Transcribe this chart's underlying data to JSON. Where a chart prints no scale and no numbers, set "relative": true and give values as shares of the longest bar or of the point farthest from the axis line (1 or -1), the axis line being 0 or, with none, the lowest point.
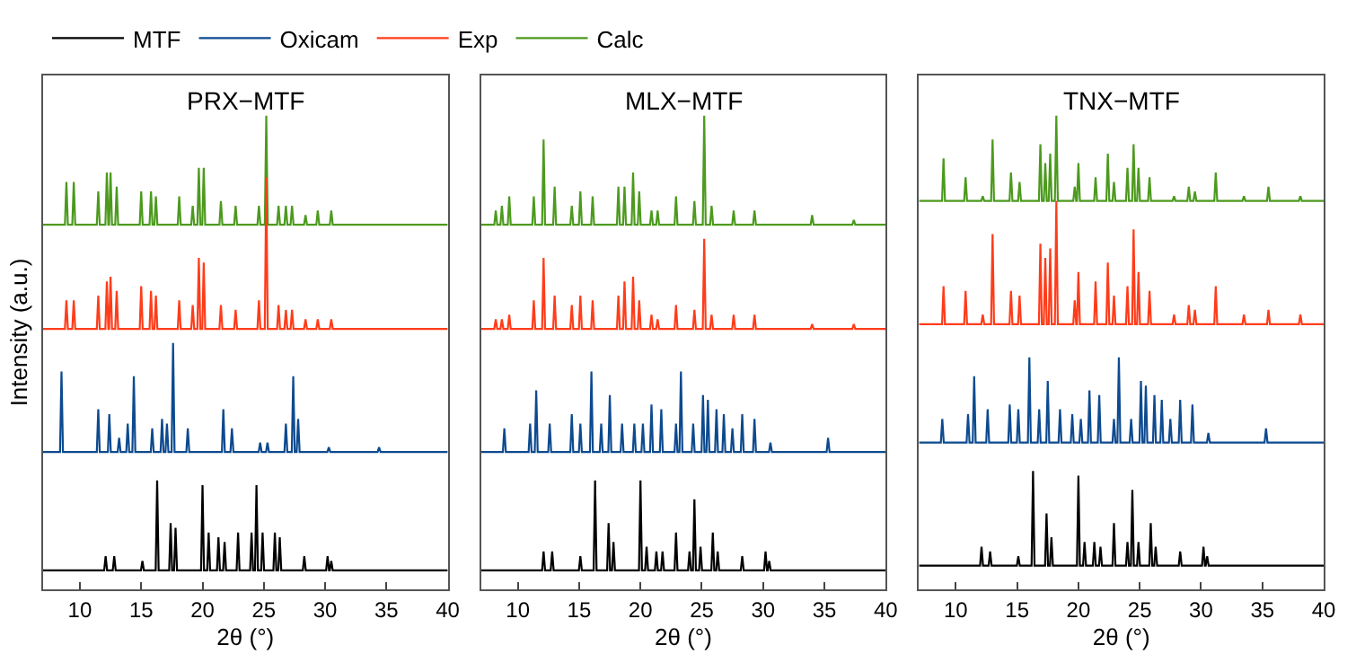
{
  "chart_data": [
    {
      "type": "line",
      "title": "PRX−MTF",
      "xlabel": "2θ (°)",
      "ylabel": "Intensity (a.u.)",
      "xlim": [
        7,
        40
      ],
      "xticks": [
        10,
        15,
        20,
        25,
        30,
        35,
        40
      ],
      "relative": true,
      "tick_labels": "x",
      "legend": "top",
      "series": [
        {
          "name": "MTF",
          "color": "#000000",
          "x": [
            7,
            11.98,
            12.1,
            12.22,
            12.68,
            12.8,
            12.92,
            14.98,
            15.1,
            15.22,
            16.18,
            16.3,
            16.42,
            17.28,
            17.4,
            17.52,
            17.68,
            17.8,
            17.92,
            19.88,
            20,
            20.12,
            20.38,
            20.5,
            20.62,
            21.18,
            21.3,
            21.42,
            21.68,
            21.8,
            21.92,
            22.78,
            22.9,
            23.02,
            23.88,
            24,
            24.12,
            24.28,
            24.4,
            24.52,
            24.78,
            24.9,
            25.02,
            25.78,
            25.9,
            26.02,
            26.18,
            26.3,
            26.42,
            28.18,
            28.3,
            28.42,
            30.08,
            30.2,
            30.32,
            30.38,
            30.5,
            30.62,
            40
          ],
          "values": [
            0.04,
            0.04,
            0.07,
            0.04,
            0.04,
            0.07,
            0.04,
            0.04,
            0.06,
            0.04,
            0.04,
            0.23,
            0.04,
            0.04,
            0.14,
            0.04,
            0.04,
            0.13,
            0.04,
            0.04,
            0.22,
            0.04,
            0.04,
            0.12,
            0.04,
            0.04,
            0.11,
            0.04,
            0.04,
            0.1,
            0.04,
            0.04,
            0.12,
            0.04,
            0.04,
            0.12,
            0.04,
            0.04,
            0.22,
            0.04,
            0.04,
            0.12,
            0.04,
            0.04,
            0.12,
            0.04,
            0.04,
            0.11,
            0.04,
            0.04,
            0.07,
            0.04,
            0.04,
            0.07,
            0.04,
            0.04,
            0.06,
            0.04,
            0.04
          ]
        },
        {
          "name": "Oxicam",
          "color": "#0d4a8f",
          "x": [
            7,
            8.38,
            8.5,
            8.62,
            11.38,
            11.5,
            11.62,
            12.28,
            12.4,
            12.52,
            13.08,
            13.2,
            13.32,
            13.78,
            13.9,
            14.02,
            14.28,
            14.4,
            14.52,
            15.78,
            15.9,
            16.02,
            16.58,
            16.7,
            16.82,
            16.98,
            17.1,
            17.22,
            17.48,
            17.6,
            17.72,
            18.68,
            18.8,
            18.92,
            21.58,
            21.7,
            21.82,
            22.28,
            22.4,
            22.52,
            24.58,
            24.7,
            24.82,
            25.18,
            25.3,
            25.42,
            26.68,
            26.8,
            26.92,
            27.28,
            27.4,
            27.52,
            27.68,
            27.8,
            27.92,
            30.18,
            30.3,
            30.42,
            34.28,
            34.4,
            34.52,
            40
          ],
          "values": [
            0.29,
            0.29,
            0.46,
            0.29,
            0.29,
            0.38,
            0.29,
            0.29,
            0.37,
            0.29,
            0.29,
            0.32,
            0.29,
            0.29,
            0.35,
            0.29,
            0.29,
            0.45,
            0.29,
            0.29,
            0.34,
            0.29,
            0.29,
            0.36,
            0.29,
            0.29,
            0.35,
            0.29,
            0.29,
            0.52,
            0.29,
            0.29,
            0.34,
            0.29,
            0.29,
            0.38,
            0.29,
            0.29,
            0.34,
            0.29,
            0.29,
            0.31,
            0.29,
            0.29,
            0.31,
            0.29,
            0.29,
            0.35,
            0.29,
            0.29,
            0.45,
            0.29,
            0.29,
            0.36,
            0.29,
            0.29,
            0.3,
            0.29,
            0.29,
            0.3,
            0.29,
            0.29
          ]
        },
        {
          "name": "Exp",
          "color": "#ff3c1a",
          "x": [
            7,
            8.78,
            8.9,
            9.02,
            9.38,
            9.5,
            9.62,
            11.38,
            11.5,
            11.62,
            12.08,
            12.2,
            12.32,
            12.38,
            12.5,
            12.62,
            12.88,
            13,
            13.12,
            14.88,
            15,
            15.12,
            15.68,
            15.8,
            15.92,
            16.08,
            16.2,
            16.32,
            17.98,
            18.1,
            18.22,
            19.08,
            19.2,
            19.32,
            19.58,
            19.7,
            19.82,
            19.98,
            20.1,
            20.22,
            21.38,
            21.5,
            21.62,
            22.58,
            22.7,
            22.82,
            24.48,
            24.6,
            24.72,
            25.08,
            25.2,
            25.32,
            26.08,
            26.2,
            26.32,
            26.68,
            26.8,
            26.92,
            27.18,
            27.3,
            27.42,
            28.28,
            28.4,
            28.52,
            29.28,
            29.4,
            29.52,
            30.38,
            30.5,
            30.62,
            40
          ],
          "values": [
            0.55,
            0.55,
            0.61,
            0.55,
            0.55,
            0.61,
            0.55,
            0.55,
            0.62,
            0.55,
            0.55,
            0.65,
            0.55,
            0.55,
            0.66,
            0.55,
            0.55,
            0.63,
            0.55,
            0.55,
            0.64,
            0.55,
            0.55,
            0.63,
            0.55,
            0.55,
            0.62,
            0.55,
            0.55,
            0.61,
            0.55,
            0.55,
            0.6,
            0.55,
            0.55,
            0.7,
            0.55,
            0.55,
            0.69,
            0.55,
            0.55,
            0.6,
            0.55,
            0.55,
            0.59,
            0.55,
            0.55,
            0.61,
            0.55,
            0.55,
            0.87,
            0.55,
            0.55,
            0.6,
            0.55,
            0.55,
            0.59,
            0.55,
            0.55,
            0.59,
            0.55,
            0.55,
            0.57,
            0.55,
            0.55,
            0.57,
            0.55,
            0.55,
            0.57,
            0.55,
            0.55
          ]
        },
        {
          "name": "Calc",
          "color": "#4c9a1e",
          "x": [
            7,
            8.78,
            8.9,
            9.02,
            9.38,
            9.5,
            9.62,
            11.38,
            11.5,
            11.62,
            12.08,
            12.2,
            12.32,
            12.38,
            12.5,
            12.62,
            12.88,
            13,
            13.12,
            14.88,
            15,
            15.12,
            15.68,
            15.8,
            15.92,
            16.08,
            16.2,
            16.32,
            17.98,
            18.1,
            18.22,
            19.08,
            19.2,
            19.32,
            19.58,
            19.7,
            19.82,
            19.98,
            20.1,
            20.22,
            21.38,
            21.5,
            21.62,
            22.58,
            22.7,
            22.82,
            24.48,
            24.6,
            24.72,
            25.08,
            25.2,
            25.32,
            26.08,
            26.2,
            26.32,
            26.68,
            26.8,
            26.92,
            27.18,
            27.3,
            27.42,
            28.28,
            28.4,
            28.52,
            29.28,
            29.4,
            29.52,
            30.38,
            30.5,
            30.62,
            40
          ],
          "values": [
            0.77,
            0.77,
            0.86,
            0.77,
            0.77,
            0.86,
            0.77,
            0.77,
            0.84,
            0.77,
            0.77,
            0.88,
            0.77,
            0.77,
            0.88,
            0.77,
            0.77,
            0.85,
            0.77,
            0.77,
            0.84,
            0.77,
            0.77,
            0.84,
            0.77,
            0.77,
            0.83,
            0.77,
            0.77,
            0.83,
            0.77,
            0.77,
            0.81,
            0.77,
            0.77,
            0.89,
            0.77,
            0.77,
            0.89,
            0.77,
            0.77,
            0.82,
            0.77,
            0.77,
            0.81,
            0.77,
            0.77,
            0.81,
            0.77,
            0.77,
            1,
            0.77,
            0.77,
            0.81,
            0.77,
            0.77,
            0.81,
            0.77,
            0.77,
            0.81,
            0.77,
            0.77,
            0.79,
            0.77,
            0.77,
            0.8,
            0.77,
            0.77,
            0.8,
            0.77,
            0.77
          ]
        }
      ]
    },
    {
      "type": "line",
      "title": "MLX−MTF",
      "xlabel": "2θ (°)",
      "xlim": [
        7,
        40
      ],
      "xticks": [
        10,
        15,
        20,
        25,
        30,
        35,
        40
      ],
      "relative": true,
      "tick_labels": "x",
      "series": [
        {
          "color": "#000000",
          "x": [
            7,
            11.98,
            12.1,
            12.22,
            12.68,
            12.8,
            12.92,
            14.98,
            15.1,
            15.22,
            16.18,
            16.3,
            16.42,
            17.28,
            17.4,
            17.52,
            17.68,
            17.8,
            17.92,
            19.88,
            20,
            20.12,
            20.38,
            20.5,
            20.62,
            21.18,
            21.3,
            21.42,
            21.68,
            21.8,
            21.92,
            22.78,
            22.9,
            23.02,
            23.88,
            24,
            24.12,
            24.28,
            24.4,
            24.52,
            24.78,
            24.9,
            25.02,
            25.78,
            25.9,
            26.02,
            26.18,
            26.3,
            26.42,
            28.18,
            28.3,
            28.42,
            30.08,
            30.2,
            30.32,
            30.38,
            30.5,
            30.62,
            40
          ],
          "values": [
            0.04,
            0.04,
            0.08,
            0.04,
            0.04,
            0.08,
            0.04,
            0.04,
            0.07,
            0.04,
            0.04,
            0.23,
            0.04,
            0.04,
            0.14,
            0.04,
            0.04,
            0.1,
            0.04,
            0.04,
            0.23,
            0.04,
            0.04,
            0.09,
            0.04,
            0.04,
            0.08,
            0.04,
            0.04,
            0.08,
            0.04,
            0.04,
            0.12,
            0.04,
            0.04,
            0.08,
            0.04,
            0.04,
            0.19,
            0.04,
            0.04,
            0.09,
            0.04,
            0.04,
            0.12,
            0.04,
            0.04,
            0.08,
            0.04,
            0.04,
            0.07,
            0.04,
            0.04,
            0.08,
            0.04,
            0.04,
            0.06,
            0.04,
            0.04
          ]
        },
        {
          "color": "#0d4a8f",
          "x": [
            7,
            8.78,
            8.9,
            9.02,
            10.88,
            11,
            11.12,
            11.38,
            11.5,
            11.62,
            12.48,
            12.6,
            12.72,
            14.28,
            14.4,
            14.52,
            14.98,
            15.1,
            15.22,
            15.88,
            16,
            16.12,
            16.68,
            16.8,
            16.92,
            17.38,
            17.5,
            17.62,
            18.38,
            18.5,
            18.62,
            19.38,
            19.5,
            19.62,
            20.08,
            20.2,
            20.32,
            20.78,
            20.9,
            21.02,
            21.58,
            21.7,
            21.82,
            22.78,
            22.9,
            23.02,
            23.18,
            23.3,
            23.42,
            24.18,
            24.3,
            24.42,
            24.98,
            25.1,
            25.22,
            25.38,
            25.5,
            25.62,
            26.08,
            26.2,
            26.32,
            26.68,
            26.8,
            26.92,
            27.38,
            27.5,
            27.62,
            28.18,
            28.3,
            28.42,
            29.18,
            29.3,
            29.42,
            30.48,
            30.6,
            30.72,
            35.18,
            35.3,
            35.42,
            40
          ],
          "values": [
            0.29,
            0.29,
            0.34,
            0.29,
            0.29,
            0.35,
            0.29,
            0.29,
            0.42,
            0.29,
            0.29,
            0.35,
            0.29,
            0.29,
            0.37,
            0.29,
            0.29,
            0.35,
            0.29,
            0.29,
            0.46,
            0.29,
            0.29,
            0.35,
            0.29,
            0.29,
            0.41,
            0.29,
            0.29,
            0.35,
            0.29,
            0.29,
            0.35,
            0.29,
            0.29,
            0.35,
            0.29,
            0.29,
            0.39,
            0.29,
            0.29,
            0.38,
            0.29,
            0.29,
            0.35,
            0.29,
            0.29,
            0.46,
            0.29,
            0.29,
            0.35,
            0.29,
            0.29,
            0.41,
            0.29,
            0.29,
            0.4,
            0.29,
            0.29,
            0.38,
            0.29,
            0.29,
            0.37,
            0.29,
            0.29,
            0.34,
            0.29,
            0.29,
            0.37,
            0.29,
            0.29,
            0.36,
            0.29,
            0.29,
            0.31,
            0.29,
            0.29,
            0.32,
            0.29,
            0.29
          ]
        },
        {
          "color": "#ff3c1a",
          "x": [
            7,
            8.08,
            8.2,
            8.32,
            8.58,
            8.7,
            8.82,
            9.18,
            9.3,
            9.42,
            11.18,
            11.3,
            11.42,
            11.98,
            12.1,
            12.22,
            12.88,
            13,
            13.12,
            14.28,
            14.4,
            14.52,
            14.98,
            15.1,
            15.22,
            15.98,
            16.1,
            16.22,
            18.08,
            18.2,
            18.32,
            18.58,
            18.7,
            18.82,
            19.28,
            19.4,
            19.52,
            19.78,
            19.9,
            20.02,
            20.78,
            20.9,
            21.02,
            21.28,
            21.4,
            21.52,
            22.78,
            22.9,
            23.02,
            24.28,
            24.4,
            24.52,
            25.08,
            25.2,
            25.32,
            25.68,
            25.8,
            25.92,
            27.48,
            27.6,
            27.72,
            29.18,
            29.3,
            29.42,
            33.88,
            34,
            34.12,
            37.28,
            37.4,
            37.52,
            40
          ],
          "values": [
            0.55,
            0.55,
            0.57,
            0.55,
            0.55,
            0.57,
            0.55,
            0.55,
            0.58,
            0.55,
            0.55,
            0.61,
            0.55,
            0.55,
            0.7,
            0.55,
            0.55,
            0.62,
            0.55,
            0.55,
            0.6,
            0.55,
            0.55,
            0.62,
            0.55,
            0.55,
            0.61,
            0.55,
            0.55,
            0.62,
            0.55,
            0.55,
            0.65,
            0.55,
            0.55,
            0.66,
            0.55,
            0.55,
            0.61,
            0.55,
            0.55,
            0.58,
            0.55,
            0.55,
            0.57,
            0.55,
            0.55,
            0.6,
            0.55,
            0.55,
            0.59,
            0.55,
            0.55,
            0.74,
            0.55,
            0.55,
            0.58,
            0.55,
            0.55,
            0.58,
            0.55,
            0.55,
            0.58,
            0.55,
            0.55,
            0.56,
            0.55,
            0.55,
            0.56,
            0.55,
            0.55
          ]
        },
        {
          "color": "#4c9a1e",
          "x": [
            7,
            8.08,
            8.2,
            8.32,
            8.58,
            8.7,
            8.82,
            9.18,
            9.3,
            9.42,
            11.18,
            11.3,
            11.42,
            11.98,
            12.1,
            12.22,
            12.88,
            13,
            13.12,
            14.28,
            14.4,
            14.52,
            14.98,
            15.1,
            15.22,
            15.98,
            16.1,
            16.22,
            18.08,
            18.2,
            18.32,
            18.58,
            18.7,
            18.82,
            19.28,
            19.4,
            19.52,
            19.78,
            19.9,
            20.02,
            20.78,
            20.9,
            21.02,
            21.28,
            21.4,
            21.52,
            22.78,
            22.9,
            23.02,
            24.28,
            24.4,
            24.52,
            25.08,
            25.2,
            25.32,
            25.68,
            25.8,
            25.92,
            27.48,
            27.6,
            27.72,
            29.18,
            29.3,
            29.42,
            33.88,
            34,
            34.12,
            37.28,
            37.4,
            37.52,
            40
          ],
          "values": [
            0.77,
            0.77,
            0.8,
            0.77,
            0.77,
            0.81,
            0.77,
            0.77,
            0.83,
            0.77,
            0.77,
            0.83,
            0.77,
            0.77,
            0.95,
            0.77,
            0.77,
            0.85,
            0.77,
            0.77,
            0.81,
            0.77,
            0.77,
            0.84,
            0.77,
            0.77,
            0.83,
            0.77,
            0.77,
            0.85,
            0.77,
            0.77,
            0.85,
            0.77,
            0.77,
            0.88,
            0.77,
            0.77,
            0.84,
            0.77,
            0.77,
            0.8,
            0.77,
            0.77,
            0.8,
            0.77,
            0.77,
            0.83,
            0.77,
            0.77,
            0.82,
            0.77,
            0.77,
            1,
            0.77,
            0.77,
            0.81,
            0.77,
            0.77,
            0.8,
            0.77,
            0.77,
            0.8,
            0.77,
            0.77,
            0.79,
            0.77,
            0.77,
            0.78,
            0.77,
            0.77
          ]
        }
      ]
    },
    {
      "type": "line",
      "title": "TNX−MTF",
      "xlabel": "2θ (°)",
      "xlim": [
        7,
        40
      ],
      "xticks": [
        10,
        15,
        20,
        25,
        30,
        35,
        40
      ],
      "relative": true,
      "tick_labels": "x",
      "series": [
        {
          "color": "#000000",
          "x": [
            7,
            11.98,
            12.1,
            12.22,
            12.68,
            12.8,
            12.92,
            14.98,
            15.1,
            15.22,
            16.18,
            16.3,
            16.42,
            17.28,
            17.4,
            17.52,
            17.68,
            17.8,
            17.92,
            19.88,
            20,
            20.12,
            20.38,
            20.5,
            20.62,
            21.18,
            21.3,
            21.42,
            21.68,
            21.8,
            21.92,
            22.78,
            22.9,
            23.02,
            23.88,
            24,
            24.12,
            24.28,
            24.4,
            24.52,
            24.78,
            24.9,
            25.02,
            25.78,
            25.9,
            26.02,
            26.18,
            26.3,
            26.42,
            28.18,
            28.3,
            28.42,
            30.08,
            30.2,
            30.32,
            30.38,
            30.5,
            30.62,
            40
          ],
          "values": [
            0.05,
            0.05,
            0.09,
            0.05,
            0.05,
            0.08,
            0.05,
            0.05,
            0.07,
            0.05,
            0.05,
            0.25,
            0.05,
            0.05,
            0.16,
            0.05,
            0.05,
            0.11,
            0.05,
            0.05,
            0.24,
            0.05,
            0.05,
            0.1,
            0.05,
            0.05,
            0.1,
            0.05,
            0.05,
            0.09,
            0.05,
            0.05,
            0.14,
            0.05,
            0.05,
            0.1,
            0.05,
            0.05,
            0.21,
            0.05,
            0.05,
            0.1,
            0.05,
            0.05,
            0.14,
            0.05,
            0.05,
            0.09,
            0.05,
            0.05,
            0.08,
            0.05,
            0.05,
            0.09,
            0.05,
            0.05,
            0.07,
            0.05,
            0.05
          ]
        },
        {
          "color": "#0d4a8f",
          "x": [
            7,
            8.78,
            8.9,
            9.02,
            10.88,
            11,
            11.12,
            11.38,
            11.5,
            11.62,
            12.48,
            12.6,
            12.72,
            14.28,
            14.4,
            14.52,
            14.98,
            15.1,
            15.22,
            15.88,
            16,
            16.12,
            16.68,
            16.8,
            16.92,
            17.38,
            17.5,
            17.62,
            18.38,
            18.5,
            18.62,
            19.38,
            19.5,
            19.62,
            20.08,
            20.2,
            20.32,
            20.78,
            20.9,
            21.02,
            21.58,
            21.7,
            21.82,
            22.78,
            22.9,
            23.02,
            23.18,
            23.3,
            23.42,
            24.18,
            24.3,
            24.42,
            24.98,
            25.1,
            25.22,
            25.38,
            25.5,
            25.62,
            26.08,
            26.2,
            26.32,
            26.68,
            26.8,
            26.92,
            27.38,
            27.5,
            27.62,
            28.18,
            28.3,
            28.42,
            29.18,
            29.3,
            29.42,
            30.48,
            30.6,
            30.72,
            35.18,
            35.3,
            35.42,
            40
          ],
          "values": [
            0.31,
            0.31,
            0.36,
            0.31,
            0.31,
            0.37,
            0.31,
            0.31,
            0.45,
            0.31,
            0.31,
            0.38,
            0.31,
            0.31,
            0.39,
            0.31,
            0.31,
            0.38,
            0.31,
            0.31,
            0.49,
            0.31,
            0.31,
            0.38,
            0.31,
            0.31,
            0.44,
            0.31,
            0.31,
            0.38,
            0.31,
            0.31,
            0.37,
            0.31,
            0.31,
            0.36,
            0.31,
            0.31,
            0.42,
            0.31,
            0.31,
            0.41,
            0.31,
            0.31,
            0.36,
            0.31,
            0.31,
            0.49,
            0.31,
            0.31,
            0.36,
            0.31,
            0.31,
            0.44,
            0.31,
            0.31,
            0.43,
            0.31,
            0.31,
            0.41,
            0.31,
            0.31,
            0.4,
            0.31,
            0.31,
            0.36,
            0.31,
            0.31,
            0.4,
            0.31,
            0.31,
            0.39,
            0.31,
            0.31,
            0.33,
            0.31,
            0.31,
            0.34,
            0.31,
            0.31
          ]
        },
        {
          "color": "#ff3c1a",
          "x": [
            7,
            8.88,
            9,
            9.12,
            10.68,
            10.8,
            10.92,
            12.08,
            12.2,
            12.32,
            12.88,
            13,
            13.12,
            14.38,
            14.5,
            14.62,
            15.08,
            15.2,
            15.32,
            16.78,
            16.9,
            17.02,
            17.18,
            17.3,
            17.42,
            17.58,
            17.7,
            17.82,
            18.08,
            18.2,
            18.32,
            19.58,
            19.7,
            19.82,
            19.88,
            20,
            20.12,
            21.28,
            21.4,
            21.52,
            22.28,
            22.4,
            22.52,
            22.78,
            22.9,
            23.02,
            23.88,
            24,
            24.12,
            24.38,
            24.5,
            24.62,
            24.78,
            24.9,
            25.02,
            25.68,
            25.8,
            25.92,
            27.68,
            27.8,
            27.92,
            28.88,
            29,
            29.12,
            29.38,
            29.5,
            29.62,
            31.08,
            31.2,
            31.32,
            33.38,
            33.5,
            33.62,
            35.38,
            35.5,
            35.62,
            37.98,
            38.1,
            38.22,
            40
          ],
          "values": [
            0.56,
            0.56,
            0.64,
            0.56,
            0.56,
            0.63,
            0.56,
            0.56,
            0.58,
            0.56,
            0.56,
            0.75,
            0.56,
            0.56,
            0.63,
            0.56,
            0.56,
            0.62,
            0.56,
            0.56,
            0.73,
            0.56,
            0.56,
            0.7,
            0.56,
            0.56,
            0.72,
            0.56,
            0.56,
            0.82,
            0.56,
            0.56,
            0.61,
            0.56,
            0.56,
            0.67,
            0.56,
            0.56,
            0.65,
            0.56,
            0.56,
            0.69,
            0.56,
            0.56,
            0.62,
            0.56,
            0.56,
            0.64,
            0.56,
            0.56,
            0.76,
            0.56,
            0.56,
            0.67,
            0.56,
            0.56,
            0.63,
            0.56,
            0.56,
            0.58,
            0.56,
            0.56,
            0.6,
            0.56,
            0.56,
            0.59,
            0.56,
            0.56,
            0.64,
            0.56,
            0.56,
            0.58,
            0.56,
            0.56,
            0.59,
            0.56,
            0.56,
            0.58,
            0.56,
            0.56
          ]
        },
        {
          "color": "#4c9a1e",
          "x": [
            7,
            8.88,
            9,
            9.12,
            10.68,
            10.8,
            10.92,
            12.08,
            12.2,
            12.32,
            12.88,
            13,
            13.12,
            14.38,
            14.5,
            14.62,
            15.08,
            15.2,
            15.32,
            16.78,
            16.9,
            17.02,
            17.18,
            17.3,
            17.42,
            17.58,
            17.7,
            17.82,
            18.08,
            18.2,
            18.32,
            19.58,
            19.7,
            19.82,
            19.88,
            20,
            20.12,
            21.28,
            21.4,
            21.52,
            22.28,
            22.4,
            22.52,
            22.78,
            22.9,
            23.02,
            23.88,
            24,
            24.12,
            24.38,
            24.5,
            24.62,
            24.78,
            24.9,
            25.02,
            25.68,
            25.8,
            25.92,
            27.68,
            27.8,
            27.92,
            28.88,
            29,
            29.12,
            29.38,
            29.5,
            29.62,
            31.08,
            31.2,
            31.32,
            33.38,
            33.5,
            33.62,
            35.38,
            35.5,
            35.62,
            37.98,
            38.1,
            38.22,
            40
          ],
          "values": [
            0.82,
            0.82,
            0.91,
            0.82,
            0.82,
            0.87,
            0.82,
            0.82,
            0.83,
            0.82,
            0.82,
            0.95,
            0.82,
            0.82,
            0.88,
            0.82,
            0.82,
            0.86,
            0.82,
            0.82,
            0.94,
            0.82,
            0.82,
            0.9,
            0.82,
            0.82,
            0.92,
            0.82,
            0.82,
            1,
            0.82,
            0.82,
            0.85,
            0.82,
            0.82,
            0.9,
            0.82,
            0.82,
            0.87,
            0.82,
            0.82,
            0.92,
            0.82,
            0.82,
            0.86,
            0.82,
            0.82,
            0.89,
            0.82,
            0.82,
            0.94,
            0.82,
            0.82,
            0.89,
            0.82,
            0.82,
            0.87,
            0.82,
            0.82,
            0.83,
            0.82,
            0.82,
            0.85,
            0.82,
            0.82,
            0.84,
            0.82,
            0.82,
            0.88,
            0.82,
            0.82,
            0.83,
            0.82,
            0.82,
            0.85,
            0.82,
            0.82,
            0.83,
            0.82,
            0.82
          ]
        }
      ]
    }
  ]
}
